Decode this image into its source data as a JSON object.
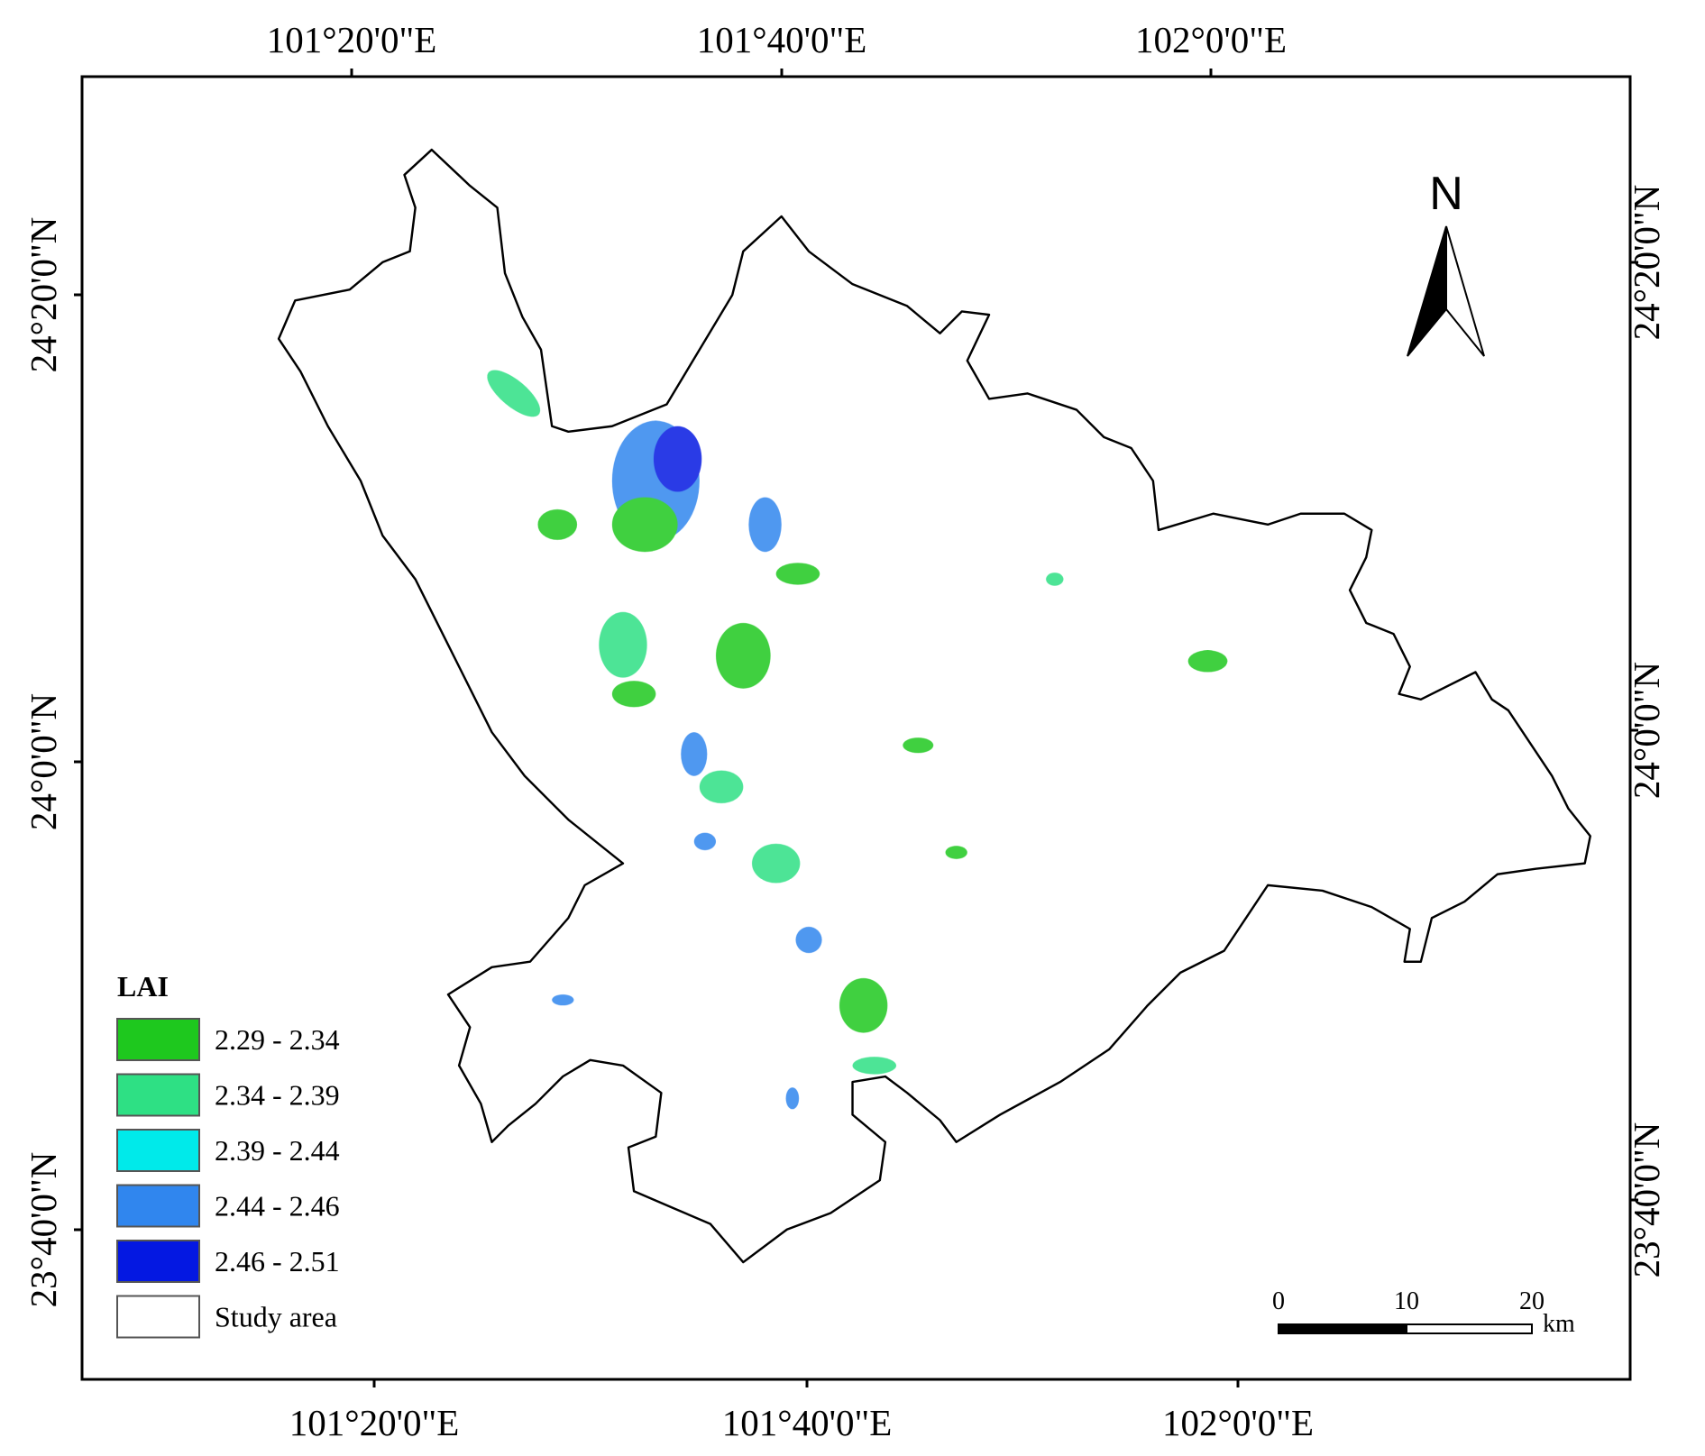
{
  "map": {
    "graticule": {
      "top": [
        "101°20'0\"E",
        "101°40'0\"E",
        "102°0'0\"E"
      ],
      "bottom": [
        "101°20'0\"E",
        "101°40'0\"E",
        "102°0'0\"E"
      ],
      "left": [
        "24°20'0\"N",
        "24°0'0\"N",
        "23°40'0\"N"
      ],
      "right": [
        "24°20'0\"N",
        "24°0'0\"N",
        "23°40'0\"N"
      ]
    },
    "north_arrow": "N",
    "legend": {
      "title": "LAI",
      "items": [
        {
          "label": "2.29 - 2.34",
          "color": "#1ec81e"
        },
        {
          "label": "2.34 - 2.39",
          "color": "#2ee084"
        },
        {
          "label": "2.39 - 2.44",
          "color": "#00eaea"
        },
        {
          "label": "2.44 - 2.46",
          "color": "#3086ee"
        },
        {
          "label": "2.46 - 2.51",
          "color": "#0418e2"
        },
        {
          "label": "Study area",
          "color": "#ffffff"
        }
      ]
    },
    "scale_bar": {
      "ticks": [
        "0",
        "10",
        "20"
      ],
      "unit": "km"
    }
  }
}
